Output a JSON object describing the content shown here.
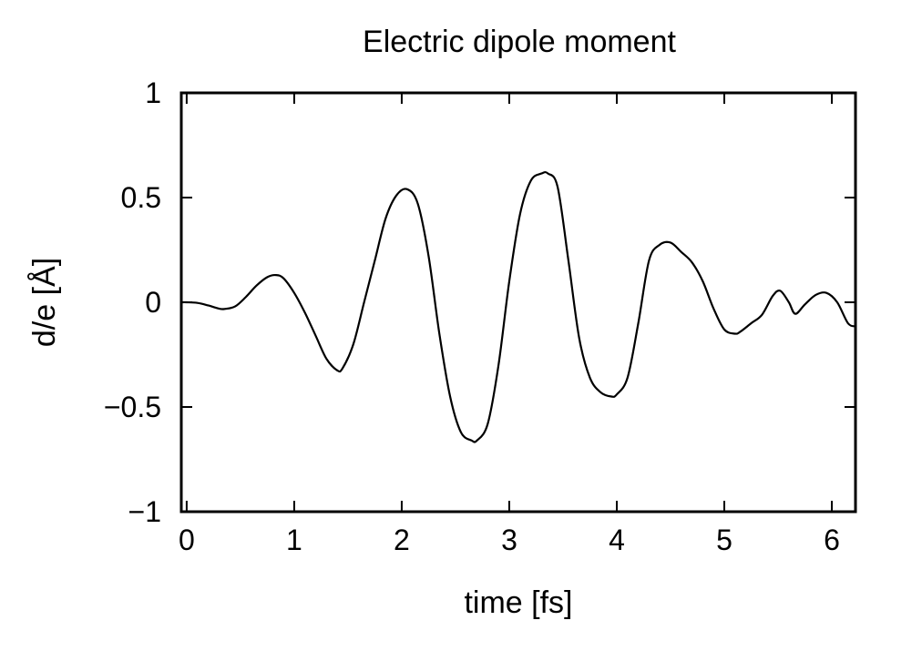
{
  "chart_data": {
    "type": "line",
    "title": "Electric dipole moment",
    "xlabel": "time [fs]",
    "ylabel": "d/e [Å]",
    "xlim": [
      -0.05,
      6.22
    ],
    "ylim": [
      -1,
      1
    ],
    "xticks": [
      {
        "value": 0,
        "label": "0"
      },
      {
        "value": 1,
        "label": "1"
      },
      {
        "value": 2,
        "label": "2"
      },
      {
        "value": 3,
        "label": "3"
      },
      {
        "value": 4,
        "label": "4"
      },
      {
        "value": 5,
        "label": "5"
      },
      {
        "value": 6,
        "label": "6"
      }
    ],
    "yticks": [
      {
        "value": -1,
        "label": "−1"
      },
      {
        "value": -0.5,
        "label": "−0.5"
      },
      {
        "value": 0,
        "label": "0"
      },
      {
        "value": 0.5,
        "label": "0.5"
      },
      {
        "value": 1,
        "label": "1"
      }
    ],
    "grid": false,
    "series": [
      {
        "color": "#000000",
        "x": [
          -0.05,
          0.0,
          0.1,
          0.2,
          0.3,
          0.35,
          0.45,
          0.55,
          0.65,
          0.75,
          0.83,
          0.9,
          1.0,
          1.1,
          1.2,
          1.3,
          1.4,
          1.45,
          1.55,
          1.65,
          1.75,
          1.85,
          1.95,
          2.05,
          2.15,
          2.25,
          2.35,
          2.45,
          2.55,
          2.65,
          2.7,
          2.8,
          2.9,
          3.0,
          3.1,
          3.2,
          3.3,
          3.36,
          3.45,
          3.55,
          3.65,
          3.75,
          3.85,
          3.95,
          4.0,
          4.1,
          4.2,
          4.3,
          4.4,
          4.5,
          4.6,
          4.7,
          4.8,
          4.9,
          5.0,
          5.1,
          5.15,
          5.25,
          5.35,
          5.45,
          5.52,
          5.6,
          5.66,
          5.75,
          5.85,
          5.95,
          6.05,
          6.15,
          6.22
        ],
        "y": [
          0.0,
          0.0,
          -0.003,
          -0.015,
          -0.03,
          -0.032,
          -0.02,
          0.025,
          0.08,
          0.12,
          0.13,
          0.115,
          0.045,
          -0.05,
          -0.16,
          -0.27,
          -0.325,
          -0.315,
          -0.2,
          0.0,
          0.2,
          0.4,
          0.51,
          0.54,
          0.47,
          0.22,
          -0.15,
          -0.45,
          -0.62,
          -0.66,
          -0.66,
          -0.58,
          -0.3,
          0.1,
          0.42,
          0.58,
          0.615,
          0.615,
          0.55,
          0.2,
          -0.17,
          -0.36,
          -0.43,
          -0.45,
          -0.44,
          -0.36,
          -0.1,
          0.2,
          0.275,
          0.285,
          0.24,
          0.19,
          0.1,
          -0.03,
          -0.13,
          -0.15,
          -0.14,
          -0.1,
          -0.06,
          0.03,
          0.055,
          0.0,
          -0.055,
          -0.01,
          0.035,
          0.045,
          0.0,
          -0.1,
          -0.115
        ]
      }
    ]
  }
}
